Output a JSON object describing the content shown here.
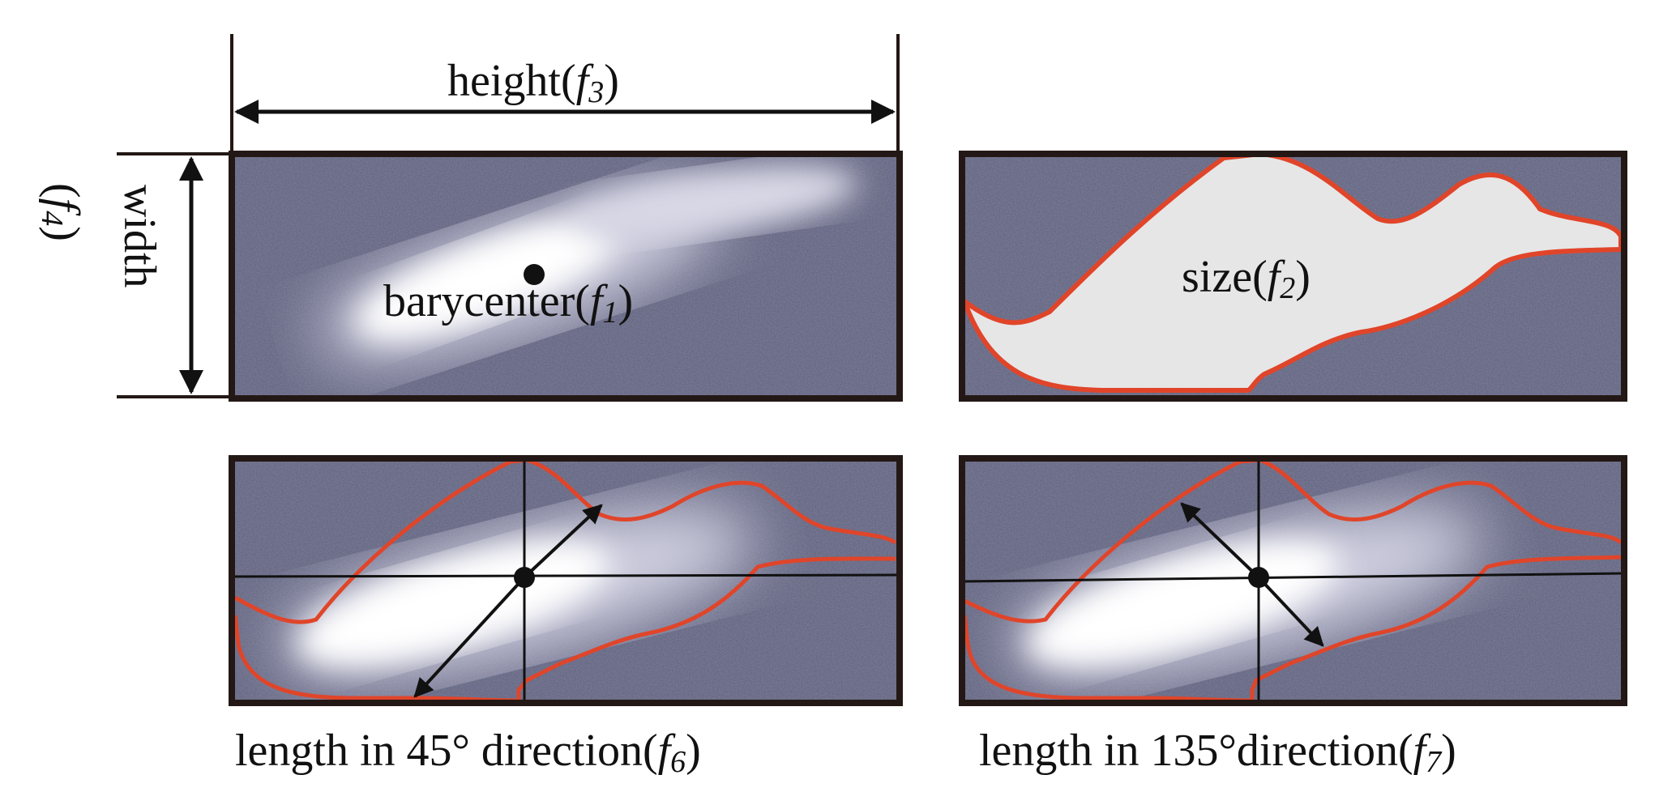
{
  "labels": {
    "height": "height(",
    "height_var": "f",
    "height_sub": "3",
    "close": ")",
    "width": "width",
    "width_open": "(",
    "width_var": "f",
    "width_sub": "4",
    "width_close": ")",
    "barycenter": "barycenter(",
    "barycenter_var": "f",
    "barycenter_sub": "1",
    "size": "size(",
    "size_var": "f",
    "size_sub": "2",
    "len45": "length in 45° direction(",
    "len45_var": "f",
    "len45_sub": "6",
    "len135": "length in 135°direction(",
    "len135_var": "f",
    "len135_sub": "7"
  },
  "colors": {
    "frame": "#231815",
    "contour": "#e0452a",
    "fill": "#e6e6e6",
    "background": "#6e6e8a",
    "glow": "#ffffff"
  }
}
